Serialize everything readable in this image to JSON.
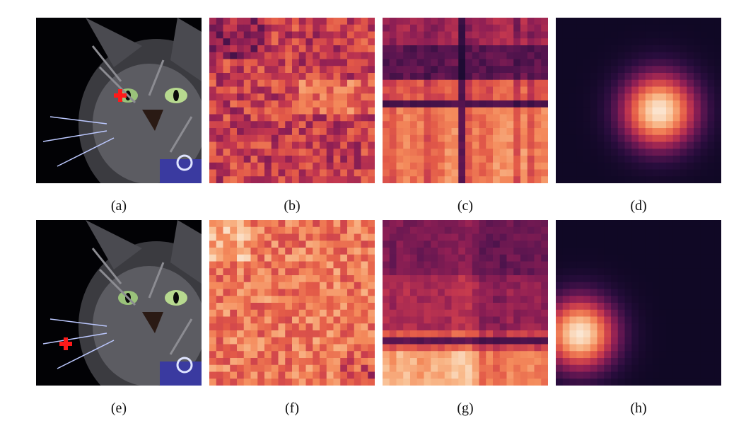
{
  "figure": {
    "rows": [
      {
        "marker_position": "right-eye-inner",
        "panels": [
          {
            "caption": "(a)",
            "kind": "cat-photo"
          },
          {
            "caption": "(b)",
            "kind": "noisy-heatmap"
          },
          {
            "caption": "(c)",
            "kind": "banded-heatmap"
          },
          {
            "caption": "(d)",
            "kind": "gaussian-heatmap"
          }
        ]
      },
      {
        "marker_position": "left-whiskers",
        "panels": [
          {
            "caption": "(e)",
            "kind": "cat-photo"
          },
          {
            "caption": "(f)",
            "kind": "noisy-heatmap"
          },
          {
            "caption": "(g)",
            "kind": "banded-heatmap"
          },
          {
            "caption": "(h)",
            "kind": "gaussian-heatmap"
          }
        ]
      }
    ],
    "colors": {
      "marker": "#ff1a1a",
      "colormap": [
        "#0b0720",
        "#2a0d3e",
        "#5a1550",
        "#8f1f54",
        "#c2364f",
        "#e35a48",
        "#f48a5b",
        "#f9bd8f",
        "#fbe6d2"
      ]
    }
  }
}
